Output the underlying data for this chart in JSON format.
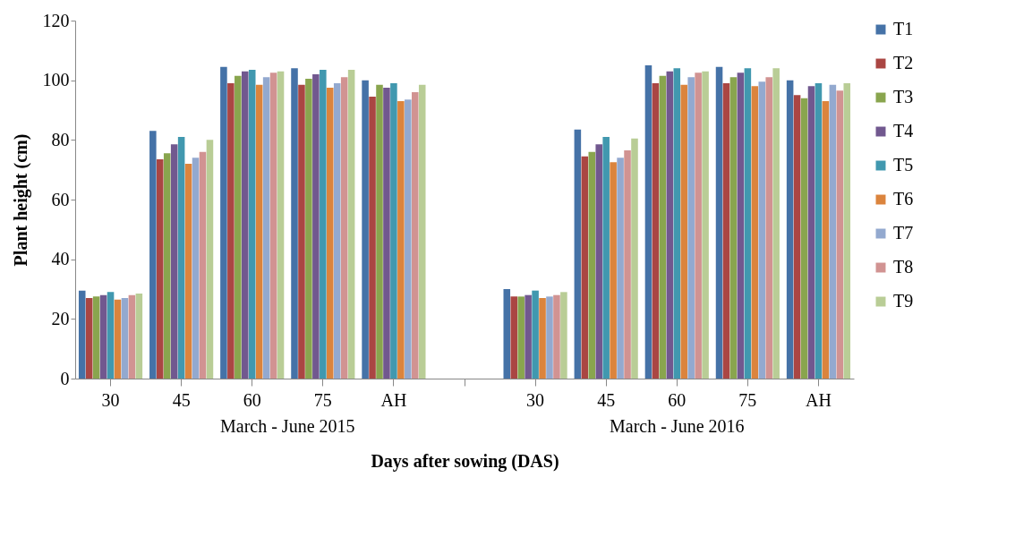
{
  "chart_data": {
    "type": "bar",
    "xlabel": "Days after sowing (DAS)",
    "ylabel": "Plant height (cm)",
    "categories": [
      "30",
      "45",
      "60",
      "75",
      "AH",
      null,
      "30",
      "45",
      "60",
      "75",
      "AH"
    ],
    "annotations": [
      "March - June 2015",
      "March - June 2016"
    ],
    "ylim": [
      0,
      120
    ],
    "yticks": [
      0,
      20,
      40,
      60,
      80,
      100,
      120
    ],
    "grid": false,
    "legend": "right",
    "series": [
      {
        "name": "T1",
        "color": "#4572a7",
        "values": [
          29.5,
          83,
          104.5,
          104,
          100,
          null,
          30,
          83.5,
          105,
          104.5,
          100
        ]
      },
      {
        "name": "T2",
        "color": "#aa4643",
        "values": [
          27,
          73.5,
          99,
          98.5,
          94.5,
          null,
          27.5,
          74.5,
          99,
          99,
          95
        ]
      },
      {
        "name": "T3",
        "color": "#89a54e",
        "values": [
          27.5,
          75.5,
          101.5,
          100.5,
          98.5,
          null,
          27.5,
          76,
          101.5,
          101,
          94
        ]
      },
      {
        "name": "T4",
        "color": "#71588f",
        "values": [
          28,
          78.5,
          103,
          102,
          97.5,
          null,
          28,
          78.5,
          103,
          102.5,
          98
        ]
      },
      {
        "name": "T5",
        "color": "#4198af",
        "values": [
          29,
          81,
          103.5,
          103.5,
          99,
          null,
          29.5,
          81,
          104,
          104,
          99
        ]
      },
      {
        "name": "T6",
        "color": "#db843d",
        "values": [
          26.5,
          72,
          98.5,
          97.5,
          93,
          null,
          27,
          72.5,
          98.5,
          98,
          93
        ]
      },
      {
        "name": "T7",
        "color": "#93a9cf",
        "values": [
          27,
          74,
          101,
          99,
          93.5,
          null,
          27.5,
          74,
          101,
          99.5,
          98.5
        ]
      },
      {
        "name": "T8",
        "color": "#d19392",
        "values": [
          28,
          76,
          102.5,
          101,
          96,
          null,
          28,
          76.5,
          102.5,
          101,
          96.5
        ]
      },
      {
        "name": "T9",
        "color": "#b9cd96",
        "values": [
          28.5,
          80,
          103,
          103.5,
          98.5,
          null,
          29,
          80.5,
          103,
          104,
          99
        ]
      }
    ]
  }
}
